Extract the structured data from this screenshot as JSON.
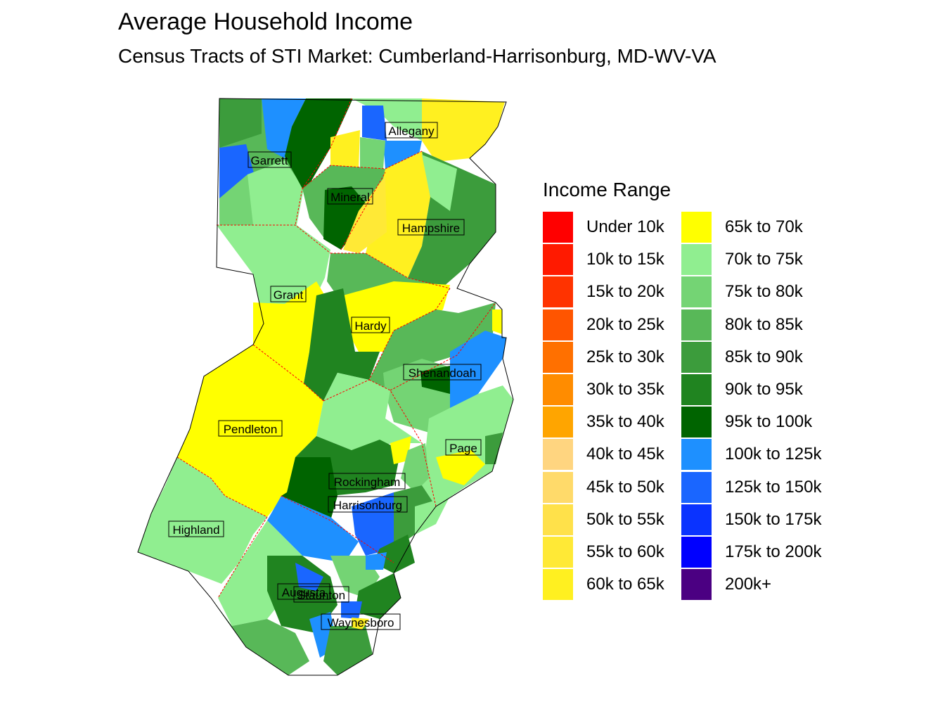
{
  "title": "Average Household Income",
  "subtitle": "Census Tracts of STI Market: Cumberland-Harrisonburg, MD-WV-VA",
  "legend": {
    "title": "Income Range",
    "items": [
      {
        "label": "Under 10k",
        "color": "#FF0000"
      },
      {
        "label": "10k to 15k",
        "color": "#FF1A00"
      },
      {
        "label": "15k to 20k",
        "color": "#FF3300"
      },
      {
        "label": "20k to 25k",
        "color": "#FF5500"
      },
      {
        "label": "25k to 30k",
        "color": "#FF7000"
      },
      {
        "label": "30k to 35k",
        "color": "#FF8C00"
      },
      {
        "label": "35k to 40k",
        "color": "#FFA500"
      },
      {
        "label": "40k to 45k",
        "color": "#FFD580"
      },
      {
        "label": "45k to 50k",
        "color": "#FFDA6A"
      },
      {
        "label": "50k to 55k",
        "color": "#FFE14A"
      },
      {
        "label": "55k to 60k",
        "color": "#FFE936"
      },
      {
        "label": "60k to 65k",
        "color": "#FFF020"
      },
      {
        "label": "65k to 70k",
        "color": "#FFFF00"
      },
      {
        "label": "70k to 75k",
        "color": "#90EE90"
      },
      {
        "label": "75k to 80k",
        "color": "#74D474"
      },
      {
        "label": "80k to 85k",
        "color": "#58B858"
      },
      {
        "label": "85k to 90k",
        "color": "#3C9C3C"
      },
      {
        "label": "90k to 95k",
        "color": "#208420"
      },
      {
        "label": "95k to 100k",
        "color": "#006400"
      },
      {
        "label": "100k to 125k",
        "color": "#1E90FF"
      },
      {
        "label": "125k to 150k",
        "color": "#1A66FF"
      },
      {
        "label": "150k to 175k",
        "color": "#0A33FF"
      },
      {
        "label": "175k to 200k",
        "color": "#0000FF"
      },
      {
        "label": "200k+",
        "color": "#4B0082"
      }
    ]
  },
  "counties": [
    {
      "name": "Allegany"
    },
    {
      "name": "Garrett"
    },
    {
      "name": "Mineral"
    },
    {
      "name": "Hampshire"
    },
    {
      "name": "Grant"
    },
    {
      "name": "Hardy"
    },
    {
      "name": "Shenandoah"
    },
    {
      "name": "Pendleton"
    },
    {
      "name": "Page"
    },
    {
      "name": "Rockingham"
    },
    {
      "name": "Harrisonburg"
    },
    {
      "name": "Highland"
    },
    {
      "name": "Augusta"
    },
    {
      "name": "Staunton"
    },
    {
      "name": "Waynesboro"
    }
  ],
  "colors": {
    "boundary": "#FF0000"
  }
}
